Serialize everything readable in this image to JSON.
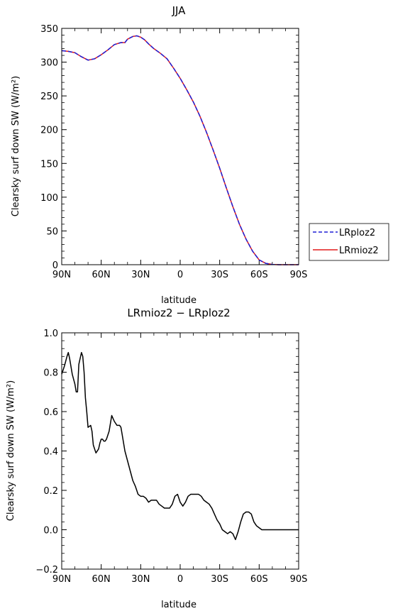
{
  "chart_data": [
    {
      "type": "line",
      "title": "JJA",
      "xlabel": "latitude",
      "ylabel": "Clearsky surf down SW (W/m²)",
      "xlim": [
        90,
        -90
      ],
      "ylim": [
        0,
        350
      ],
      "xticks": [
        90,
        60,
        30,
        0,
        -30,
        -60,
        -90
      ],
      "xtick_labels": [
        "90N",
        "60N",
        "30N",
        "0",
        "30S",
        "60S",
        "90S"
      ],
      "yticks": [
        0,
        50,
        100,
        150,
        200,
        250,
        300,
        350
      ],
      "ytick_labels": [
        "0",
        "50",
        "100",
        "150",
        "200",
        "250",
        "300",
        "350"
      ],
      "grid": false,
      "legend_placement": "outside-right",
      "x": [
        90,
        85,
        80,
        75,
        70,
        65,
        60,
        55,
        50,
        45,
        42,
        40,
        36,
        33,
        30,
        27,
        24,
        20,
        15,
        10,
        5,
        0,
        -5,
        -10,
        -15,
        -20,
        -25,
        -30,
        -35,
        -40,
        -45,
        -50,
        -55,
        -60,
        -65,
        -70,
        -75,
        -80,
        -85,
        -90
      ],
      "series": [
        {
          "name": "LRploz2",
          "color": "#1f1fd6",
          "dash": "dashed",
          "values": [
            317,
            316,
            314,
            308,
            303,
            305,
            311,
            318,
            326,
            329,
            329,
            334,
            338,
            339,
            337,
            333,
            327,
            320,
            313,
            305,
            291,
            276,
            259,
            241,
            220,
            196,
            170,
            143,
            114,
            86,
            60,
            38,
            20,
            7,
            2,
            0.4,
            0.05,
            0,
            0,
            0
          ]
        },
        {
          "name": "LRmioz2",
          "color": "#e21a1a",
          "dash": "solid",
          "values": [
            317,
            316,
            314,
            308,
            303,
            305,
            311,
            318,
            326,
            329,
            329,
            334,
            338,
            339,
            337,
            333,
            327,
            320,
            313,
            305,
            291,
            276,
            259,
            241,
            220,
            196,
            170,
            143,
            114,
            86,
            60,
            38,
            20,
            7,
            2,
            0.4,
            0.05,
            0,
            0,
            0
          ]
        }
      ]
    },
    {
      "type": "line",
      "title": "LRmioz2 − LRploz2",
      "xlabel": "latitude",
      "ylabel": "Clearsky surf down SW (W/m²)",
      "xlim": [
        90,
        -90
      ],
      "ylim": [
        -0.2,
        1.0
      ],
      "xticks": [
        90,
        60,
        30,
        0,
        -30,
        -60,
        -90
      ],
      "xtick_labels": [
        "90N",
        "60N",
        "30N",
        "0",
        "30S",
        "60S",
        "90S"
      ],
      "yticks": [
        -0.2,
        0.0,
        0.2,
        0.4,
        0.6,
        0.8,
        1.0
      ],
      "ytick_labels": [
        "−0.2",
        "0.0",
        "0.2",
        "0.4",
        "0.6",
        "0.8",
        "1.0"
      ],
      "grid": false,
      "x": [
        90,
        88,
        86,
        85,
        84,
        82,
        80,
        79,
        78,
        77,
        75,
        74,
        73,
        72,
        71,
        70,
        68,
        67,
        66,
        64,
        62,
        61,
        60,
        59,
        58,
        57,
        56,
        54,
        52,
        50,
        48,
        47,
        46,
        45,
        44,
        42,
        40,
        38,
        36,
        34,
        32,
        30,
        28,
        26,
        24,
        22,
        20,
        18,
        16,
        14,
        12,
        10,
        8,
        6,
        4,
        2,
        0,
        -2,
        -4,
        -6,
        -8,
        -10,
        -12,
        -14,
        -16,
        -18,
        -20,
        -22,
        -24,
        -26,
        -28,
        -30,
        -32,
        -34,
        -36,
        -38,
        -40,
        -42,
        -44,
        -46,
        -48,
        -50,
        -52,
        -54,
        -55,
        -56,
        -58,
        -60,
        -62,
        -64,
        -66,
        -68,
        -70,
        -72,
        -74,
        -76,
        -78,
        -80,
        -85,
        -90
      ],
      "series": [
        {
          "name": "",
          "color": "#000000",
          "dash": "solid",
          "values": [
            0.79,
            0.83,
            0.88,
            0.9,
            0.87,
            0.79,
            0.74,
            0.7,
            0.7,
            0.84,
            0.9,
            0.88,
            0.8,
            0.67,
            0.6,
            0.52,
            0.53,
            0.5,
            0.43,
            0.39,
            0.41,
            0.44,
            0.46,
            0.46,
            0.45,
            0.45,
            0.46,
            0.5,
            0.58,
            0.55,
            0.53,
            0.53,
            0.53,
            0.52,
            0.48,
            0.4,
            0.35,
            0.3,
            0.25,
            0.22,
            0.18,
            0.17,
            0.17,
            0.16,
            0.14,
            0.15,
            0.15,
            0.15,
            0.13,
            0.12,
            0.11,
            0.11,
            0.11,
            0.13,
            0.17,
            0.18,
            0.14,
            0.12,
            0.14,
            0.17,
            0.18,
            0.18,
            0.18,
            0.18,
            0.17,
            0.15,
            0.14,
            0.13,
            0.11,
            0.08,
            0.05,
            0.03,
            0.0,
            -0.01,
            -0.02,
            -0.01,
            -0.02,
            -0.05,
            -0.01,
            0.04,
            0.08,
            0.09,
            0.09,
            0.08,
            0.06,
            0.04,
            0.02,
            0.01,
            0.0,
            0.0,
            0.0,
            0.0,
            0.0,
            0.0,
            0.0,
            0.0,
            0.0,
            0.0,
            0.0,
            0.0
          ]
        }
      ]
    }
  ]
}
